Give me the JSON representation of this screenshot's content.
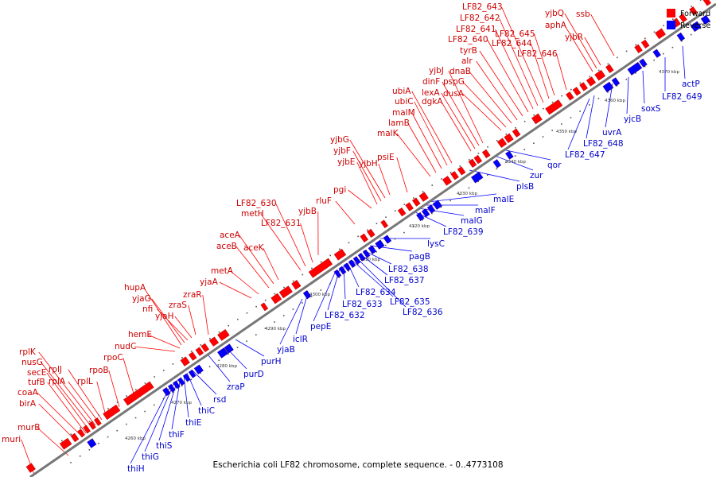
{
  "caption": "Escherichia coli LF82 chromosome, complete sequence. - 0..4773108",
  "legend": [
    {
      "label": "Forward",
      "color": "#ff0000"
    },
    {
      "label": "Reverse",
      "color": "#0000ff"
    }
  ],
  "colors": {
    "forward": "#ff0000",
    "reverse": "#0000ff",
    "forward_text": "#cc0000",
    "reverse_text": "#0000cc",
    "backbone": "#777777"
  },
  "ticks": [
    "4260 kbp",
    "4270 kbp",
    "4280 kbp",
    "4290 kbp",
    "4300 kbp",
    "4310 kbp",
    "4320 kbp",
    "4330 kbp",
    "4340 kbp",
    "4350 kbp",
    "4360 kbp",
    "4370 kbp"
  ],
  "forward_genes": [
    "muri",
    "murB",
    "birA",
    "coaA",
    "tufB",
    "secE",
    "nusG",
    "rplK",
    "rplA",
    "rplJ",
    "rplL",
    "rpoB",
    "rpoC",
    "nudC",
    "hemE",
    "hupA",
    "yjaG",
    "nfi",
    "yjaH",
    "zraS",
    "zraR",
    "yjaA",
    "metA",
    "aceB",
    "aceA",
    "aceK",
    "metH",
    "LF82_630",
    "LF82_631",
    "yjbB",
    "rluF",
    "pgi",
    "yjbE",
    "yjbF",
    "yjbG",
    "yjbH",
    "psiE",
    "malK",
    "lamB",
    "malM",
    "ubiC",
    "ubiA",
    "dgkA",
    "lexA",
    "dinF",
    "yjbJ",
    "dusA",
    "pspG",
    "dnaB",
    "alr",
    "tyrB",
    "LF82_640",
    "LF82_641",
    "LF82_642",
    "LF82_643",
    "LF82_644",
    "LF82_645",
    "LF82_646",
    "aphA",
    "yjbQ",
    "yjbR",
    "ssb"
  ],
  "reverse_genes": [
    "thiH",
    "thiG",
    "thiS",
    "thiF",
    "thiE",
    "thiC",
    "rsd",
    "zraP",
    "purD",
    "purH",
    "yjaB",
    "iclR",
    "pepE",
    "LF82_632",
    "LF82_633",
    "LF82_634",
    "LF82_635",
    "LF82_636",
    "LF82_637",
    "LF82_638",
    "pagB",
    "lysC",
    "LF82_639",
    "malG",
    "malF",
    "malE",
    "plsB",
    "zur",
    "qor",
    "LF82_647",
    "LF82_648",
    "uvrA",
    "yjcB",
    "soxS",
    "LF82_649",
    "actP"
  ]
}
